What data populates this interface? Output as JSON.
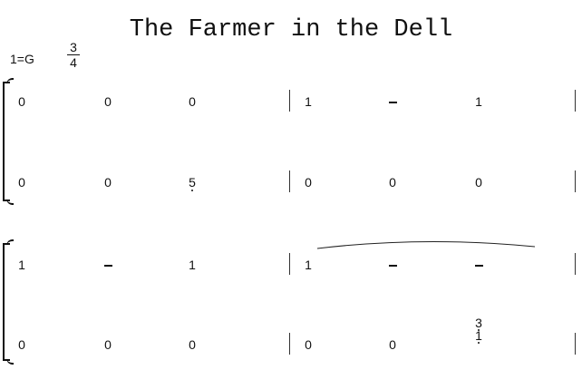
{
  "title": "The Farmer in the Dell",
  "key": "1=G",
  "time_signature": {
    "top": "3",
    "bottom": "4"
  },
  "systems": [
    {
      "staves": [
        [
          [
            "0",
            "0",
            "0"
          ],
          [
            "1",
            "-",
            "1"
          ]
        ],
        [
          [
            "0",
            "0",
            {
              "d": "5",
              "low": true
            }
          ],
          [
            "0",
            "0",
            "0"
          ]
        ]
      ]
    },
    {
      "staves": [
        [
          [
            "1",
            "-",
            "1"
          ],
          [
            "1",
            "-",
            "-"
          ]
        ],
        [
          [
            "0",
            "0",
            "0"
          ],
          [
            "0",
            "0",
            {
              "chord": [
                "3",
                "1"
              ],
              "low": true
            }
          ]
        ]
      ],
      "tie": "measure 2 upper staff"
    }
  ]
}
